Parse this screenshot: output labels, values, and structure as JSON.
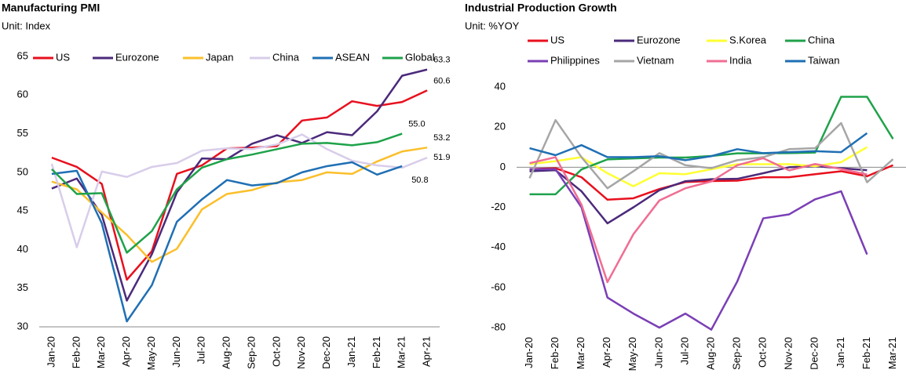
{
  "chart_data": [
    {
      "type": "line",
      "title": "Manufacturing PMI",
      "subtitle": "Unit: Index",
      "categories": [
        "Jan-20",
        "Feb-20",
        "Mar-20",
        "Apr-20",
        "May-20",
        "Jun-20",
        "Jul-20",
        "Aug-20",
        "Sep-20",
        "Oct-20",
        "Nov-20",
        "Dec-20",
        "Jan-21",
        "Feb-21",
        "Mar-21",
        "Apr-21"
      ],
      "ylim": [
        30,
        65
      ],
      "yticks": [
        30,
        35,
        40,
        45,
        50,
        55,
        60,
        65
      ],
      "grid": false,
      "series": [
        {
          "name": "US",
          "color": "#e8101e",
          "values": [
            51.9,
            50.7,
            48.5,
            36.1,
            39.8,
            49.8,
            50.9,
            53.1,
            53.2,
            53.4,
            56.7,
            57.1,
            59.2,
            58.6,
            59.1,
            60.6
          ],
          "value_labels": [
            null,
            null,
            null,
            null,
            null,
            null,
            null,
            null,
            null,
            null,
            null,
            null,
            null,
            null,
            null,
            "60.6"
          ]
        },
        {
          "name": "Eurozone",
          "color": "#4b2a7b",
          "values": [
            47.9,
            49.2,
            44.5,
            33.4,
            39.4,
            47.4,
            51.8,
            51.7,
            53.7,
            54.8,
            53.8,
            55.2,
            54.8,
            57.9,
            62.5,
            63.3
          ],
          "value_labels": [
            null,
            null,
            null,
            null,
            null,
            null,
            null,
            null,
            null,
            null,
            null,
            null,
            null,
            null,
            null,
            "63.3"
          ]
        },
        {
          "name": "Japan",
          "color": "#fbbf2a",
          "values": [
            48.8,
            47.8,
            44.8,
            41.9,
            38.4,
            40.1,
            45.2,
            47.2,
            47.7,
            48.7,
            49.0,
            50.0,
            49.8,
            51.4,
            52.7,
            53.2
          ],
          "value_labels": [
            null,
            null,
            null,
            null,
            null,
            null,
            null,
            null,
            null,
            null,
            null,
            null,
            null,
            null,
            null,
            "53.2"
          ]
        },
        {
          "name": "China",
          "color": "#d8cdea",
          "values": [
            51.1,
            40.3,
            50.1,
            49.4,
            50.7,
            51.2,
            52.8,
            53.1,
            53.0,
            53.6,
            54.9,
            53.0,
            51.5,
            50.9,
            50.6,
            51.9
          ],
          "value_labels": [
            null,
            null,
            null,
            null,
            null,
            null,
            null,
            null,
            null,
            null,
            null,
            null,
            null,
            null,
            null,
            "51.9"
          ]
        },
        {
          "name": "ASEAN",
          "color": "#1f6fb4",
          "values": [
            49.8,
            50.2,
            43.4,
            30.7,
            35.4,
            43.6,
            46.5,
            49.0,
            48.3,
            48.6,
            50.0,
            50.8,
            51.3,
            49.7,
            50.8,
            null
          ],
          "value_labels": [
            null,
            null,
            null,
            null,
            null,
            null,
            null,
            null,
            null,
            null,
            null,
            null,
            null,
            null,
            "50.8",
            null
          ]
        },
        {
          "name": "Global",
          "color": "#1fa24a",
          "values": [
            50.4,
            47.2,
            47.3,
            39.6,
            42.4,
            47.8,
            50.6,
            51.7,
            52.3,
            53.0,
            53.7,
            53.8,
            53.5,
            53.9,
            55.0,
            null
          ],
          "value_labels": [
            null,
            null,
            null,
            null,
            null,
            null,
            null,
            null,
            null,
            null,
            null,
            null,
            null,
            null,
            "55.0",
            null
          ]
        }
      ]
    },
    {
      "type": "line",
      "title": "Industrial Production Growth",
      "subtitle": "Unit: %YOY",
      "categories": [
        "Jan-20",
        "Feb-20",
        "Mar-20",
        "Apr-20",
        "May-20",
        "Jun-20",
        "Jul-20",
        "Aug-20",
        "Sep-20",
        "Oct-20",
        "Nov-20",
        "Dec-20",
        "Jan-21",
        "Feb-21",
        "Mar-21"
      ],
      "ylim": [
        -80,
        40
      ],
      "yticks": [
        -80,
        -60,
        -40,
        -20,
        0,
        20,
        40
      ],
      "grid": false,
      "series": [
        {
          "name": "US",
          "color": "#e8101e",
          "values": [
            -1,
            -0.5,
            -5,
            -16.2,
            -15.5,
            -10.9,
            -7.4,
            -6.9,
            -6.7,
            -5,
            -5,
            -3.5,
            -2,
            -4.5,
            1
          ]
        },
        {
          "name": "Eurozone",
          "color": "#4b2a7b",
          "values": [
            -2,
            -1.5,
            -12,
            -28,
            -20,
            -11.5,
            -7,
            -6,
            -5.8,
            -3,
            0,
            0.5,
            -0.5,
            -1.5,
            null
          ]
        },
        {
          "name": "S.Korea",
          "color": "#ffff33",
          "values": [
            1.5,
            3,
            5,
            -3,
            -9.5,
            -3,
            -3.5,
            -1,
            1.5,
            1.5,
            1.5,
            0.5,
            2.5,
            10,
            null
          ]
        },
        {
          "name": "China",
          "color": "#1fa24a",
          "values": [
            -13.5,
            -13.5,
            -1.1,
            3.9,
            4.4,
            4.8,
            4.8,
            5.6,
            6.9,
            6.9,
            7.0,
            7.3,
            35.1,
            35.1,
            14.1
          ]
        },
        {
          "name": "Philippines",
          "color": "#7a3fb5",
          "values": [
            -1,
            -1,
            -20,
            -65,
            -73,
            -80,
            -73,
            -81,
            -57,
            -25.5,
            -23.5,
            -16,
            -12,
            -43.5,
            null
          ]
        },
        {
          "name": "Vietnam",
          "color": "#a6a6a6",
          "values": [
            -5.5,
            23.5,
            5,
            -10.5,
            -2,
            7,
            1,
            -0.5,
            3.5,
            5,
            9,
            9.5,
            22,
            -7.5,
            4
          ]
        },
        {
          "name": "India",
          "color": "#f06d93",
          "values": [
            2,
            5,
            -18.7,
            -57.3,
            -33.4,
            -16.6,
            -10.5,
            -7.1,
            1,
            4.5,
            -1.6,
            1.6,
            -0.9,
            -3.6,
            null
          ]
        },
        {
          "name": "Taiwan",
          "color": "#1f6fb4",
          "values": [
            9.5,
            6,
            11,
            5,
            5,
            5.5,
            3.5,
            5.5,
            9,
            7,
            7.5,
            8,
            7.5,
            17,
            null
          ]
        }
      ]
    }
  ]
}
